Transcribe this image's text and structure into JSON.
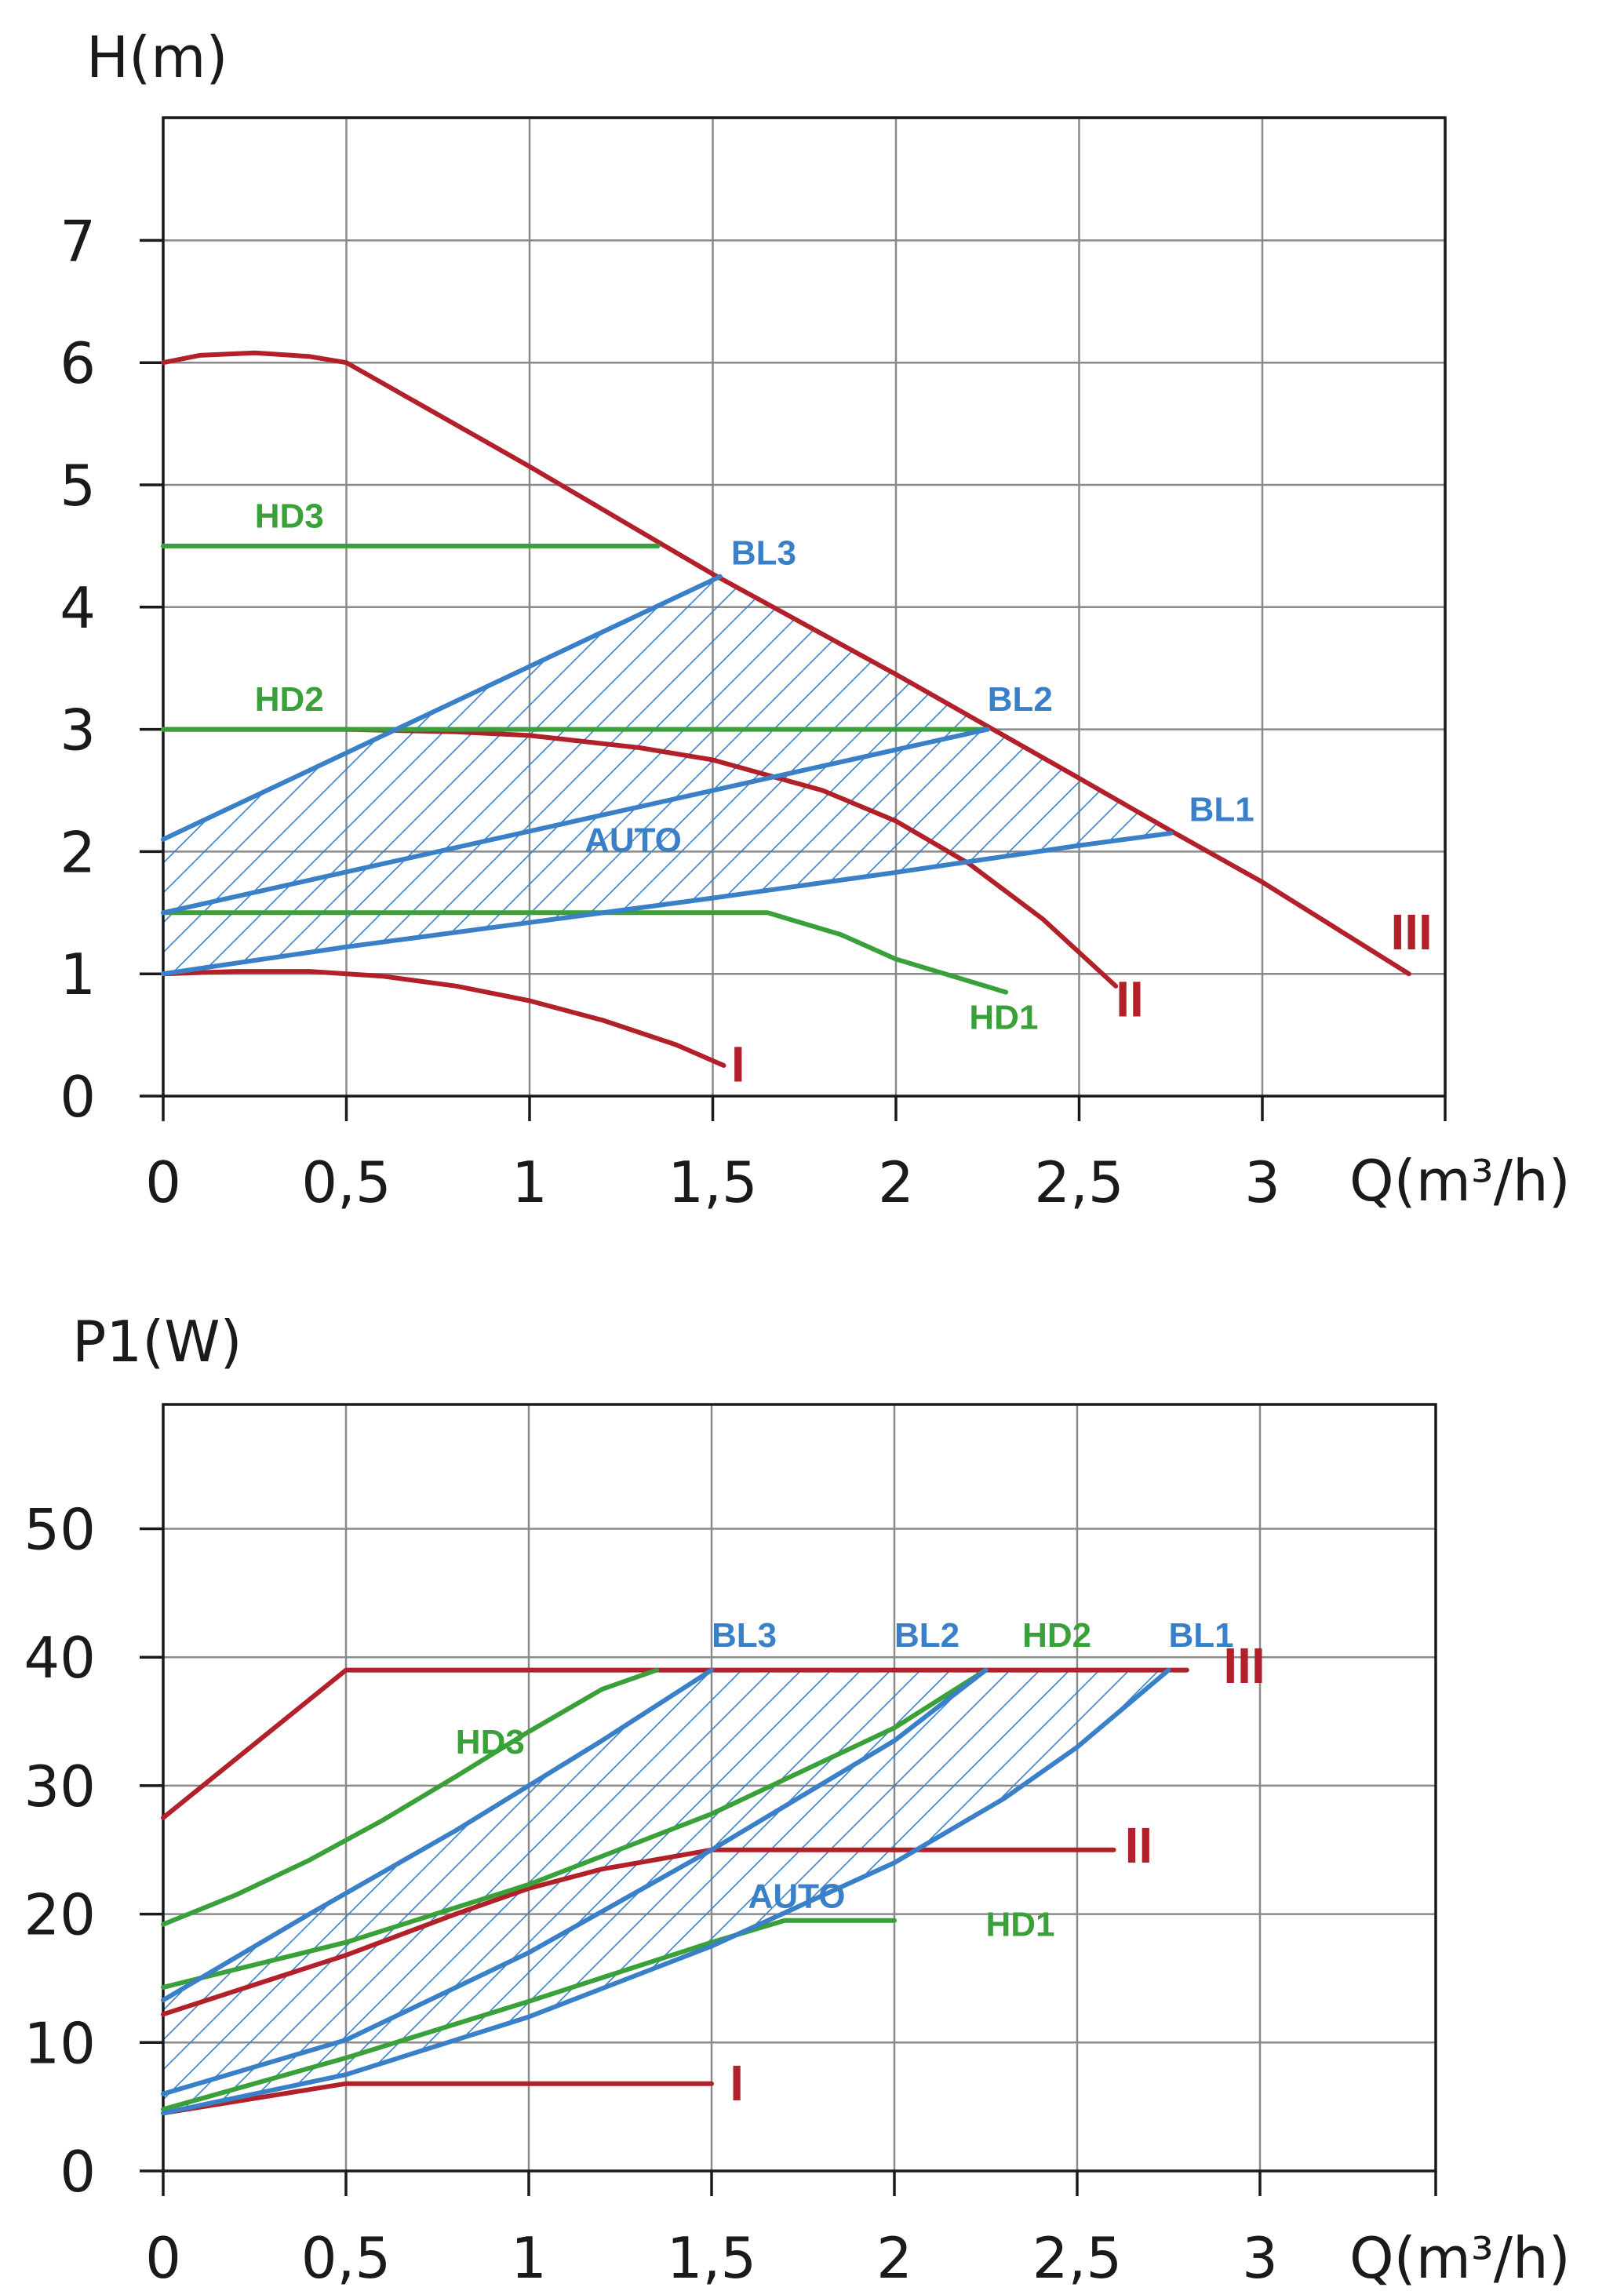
{
  "colors": {
    "red": "#b2202a",
    "blue": "#3a80c8",
    "green": "#3aa13a",
    "grid": "#8a8a8a",
    "axis": "#1a1a1a"
  },
  "chart_data": [
    {
      "type": "line",
      "title": "",
      "ylabel": "H(m)",
      "xlabel": "Q(m³/h)",
      "xlim": [
        0,
        3.5
      ],
      "ylim": [
        0,
        8
      ],
      "x_ticks": [
        "0",
        "0,5",
        "1",
        "1,5",
        "2",
        "2,5",
        "3"
      ],
      "y_ticks": [
        "0",
        "1",
        "2",
        "3",
        "4",
        "5",
        "6",
        "7"
      ],
      "grid": true,
      "hatched_region": "AUTO",
      "series": [
        {
          "name": "III",
          "color": "red",
          "x": [
            0,
            0.1,
            0.25,
            0.4,
            0.5,
            1.0,
            1.5,
            2.0,
            2.5,
            2.75,
            3.0,
            3.4
          ],
          "y": [
            6.0,
            6.06,
            6.08,
            6.05,
            6.0,
            5.15,
            4.27,
            3.45,
            2.6,
            2.17,
            1.75,
            1.0
          ]
        },
        {
          "name": "II",
          "color": "red",
          "x": [
            0,
            0.5,
            0.8,
            1.0,
            1.3,
            1.5,
            1.8,
            2.0,
            2.2,
            2.4,
            2.6
          ],
          "y": [
            3.0,
            3.0,
            2.98,
            2.95,
            2.85,
            2.75,
            2.5,
            2.25,
            1.9,
            1.45,
            0.9
          ]
        },
        {
          "name": "I",
          "color": "red",
          "x": [
            0,
            0.2,
            0.4,
            0.6,
            0.8,
            1.0,
            1.2,
            1.4,
            1.53
          ],
          "y": [
            1.0,
            1.02,
            1.02,
            0.98,
            0.9,
            0.78,
            0.62,
            0.42,
            0.25
          ]
        },
        {
          "name": "HD3",
          "color": "green",
          "x": [
            0,
            1.35
          ],
          "y": [
            4.5,
            4.5
          ]
        },
        {
          "name": "HD2",
          "color": "green",
          "x": [
            0,
            2.25
          ],
          "y": [
            3.0,
            3.0
          ]
        },
        {
          "name": "HD1",
          "color": "green",
          "x": [
            0,
            1.65,
            1.85,
            2.0,
            2.3
          ],
          "y": [
            1.5,
            1.5,
            1.32,
            1.12,
            0.85
          ]
        },
        {
          "name": "BL3",
          "color": "blue",
          "x": [
            0,
            1.52
          ],
          "y": [
            2.1,
            4.25
          ]
        },
        {
          "name": "BL2",
          "color": "blue",
          "x": [
            0,
            2.25
          ],
          "y": [
            1.5,
            3.0
          ]
        },
        {
          "name": "BL1",
          "color": "blue",
          "x": [
            0,
            0.5,
            1.0,
            1.5,
            2.0,
            2.5,
            2.75
          ],
          "y": [
            1.0,
            1.22,
            1.42,
            1.62,
            1.83,
            2.05,
            2.15
          ]
        }
      ],
      "labels": [
        {
          "text": "HD3",
          "color": "green",
          "x": 0.25,
          "y": 4.65
        },
        {
          "text": "HD2",
          "color": "green",
          "x": 0.25,
          "y": 3.15
        },
        {
          "text": "BL3",
          "color": "blue",
          "x": 1.55,
          "y": 4.35
        },
        {
          "text": "BL2",
          "color": "blue",
          "x": 2.25,
          "y": 3.15
        },
        {
          "text": "BL1",
          "color": "blue",
          "x": 2.8,
          "y": 2.25
        },
        {
          "text": "AUTO",
          "color": "blue",
          "x": 1.15,
          "y": 2.0
        },
        {
          "text": "HD1",
          "color": "green",
          "x": 2.2,
          "y": 0.55
        },
        {
          "text": "III",
          "color": "red",
          "x": 3.35,
          "y": 1.2
        },
        {
          "text": "II",
          "color": "red",
          "x": 2.6,
          "y": 0.65
        },
        {
          "text": "I",
          "color": "red",
          "x": 1.55,
          "y": 0.12
        }
      ]
    },
    {
      "type": "line",
      "title": "",
      "ylabel": "P1(W)",
      "xlabel": "Q(m³/h)",
      "xlim": [
        0,
        3.5
      ],
      "ylim": [
        0,
        60
      ],
      "x_ticks": [
        "0",
        "0,5",
        "1",
        "1,5",
        "2",
        "2,5",
        "3"
      ],
      "y_ticks": [
        "0",
        "10",
        "20",
        "30",
        "40",
        "50"
      ],
      "grid": true,
      "hatched_region": "AUTO",
      "series": [
        {
          "name": "III",
          "color": "red",
          "x": [
            0,
            0.5,
            2.8
          ],
          "y": [
            27.5,
            39,
            39
          ]
        },
        {
          "name": "II",
          "color": "red",
          "x": [
            0,
            0.5,
            0.8,
            1.0,
            1.2,
            1.5,
            2.6
          ],
          "y": [
            12.2,
            16.8,
            20.0,
            22.0,
            23.5,
            25.0,
            25.0
          ]
        },
        {
          "name": "I",
          "color": "red",
          "x": [
            0,
            0.5,
            1.5
          ],
          "y": [
            4.5,
            6.8,
            6.8
          ]
        },
        {
          "name": "HD3",
          "color": "green",
          "x": [
            0,
            0.2,
            0.4,
            0.6,
            0.8,
            1.0,
            1.2,
            1.35
          ],
          "y": [
            19.2,
            21.5,
            24.2,
            27.3,
            30.7,
            34.2,
            37.5,
            39.0
          ]
        },
        {
          "name": "HD2",
          "color": "green",
          "x": [
            0,
            0.5,
            1.0,
            1.5,
            2.0,
            2.25
          ],
          "y": [
            14.3,
            17.8,
            22.3,
            27.8,
            34.5,
            39.0
          ]
        },
        {
          "name": "HD1",
          "color": "green",
          "x": [
            0,
            0.5,
            1.0,
            1.5,
            1.7,
            2.0
          ],
          "y": [
            4.8,
            8.8,
            13.2,
            17.8,
            19.5,
            19.5
          ]
        },
        {
          "name": "BL3",
          "color": "blue",
          "x": [
            0,
            0.4,
            0.8,
            1.2,
            1.5
          ],
          "y": [
            13.3,
            20.0,
            26.5,
            33.5,
            39.0
          ]
        },
        {
          "name": "BL2",
          "color": "blue",
          "x": [
            0,
            0.5,
            1.0,
            1.5,
            2.0,
            2.25
          ],
          "y": [
            6.0,
            10.2,
            17.0,
            25.0,
            33.5,
            39.0
          ]
        },
        {
          "name": "BL1",
          "color": "blue",
          "x": [
            0,
            0.5,
            1.0,
            1.5,
            2.0,
            2.3,
            2.5,
            2.75
          ],
          "y": [
            4.5,
            7.5,
            12.0,
            17.5,
            24.0,
            29.0,
            33.0,
            39.0
          ]
        }
      ],
      "labels": [
        {
          "text": "BL3",
          "color": "blue",
          "x": 1.5,
          "y": 40.8
        },
        {
          "text": "BL2",
          "color": "blue",
          "x": 2.0,
          "y": 40.8
        },
        {
          "text": "HD2",
          "color": "green",
          "x": 2.35,
          "y": 40.8
        },
        {
          "text": "BL1",
          "color": "blue",
          "x": 2.75,
          "y": 40.8
        },
        {
          "text": "III",
          "color": "red",
          "x": 2.9,
          "y": 38.0
        },
        {
          "text": "HD3",
          "color": "green",
          "x": 0.8,
          "y": 32.5
        },
        {
          "text": "II",
          "color": "red",
          "x": 2.63,
          "y": 24.0
        },
        {
          "text": "AUTO",
          "color": "blue",
          "x": 1.6,
          "y": 20.5
        },
        {
          "text": "HD1",
          "color": "green",
          "x": 2.25,
          "y": 18.3
        },
        {
          "text": "I",
          "color": "red",
          "x": 1.55,
          "y": 5.5
        }
      ]
    }
  ]
}
